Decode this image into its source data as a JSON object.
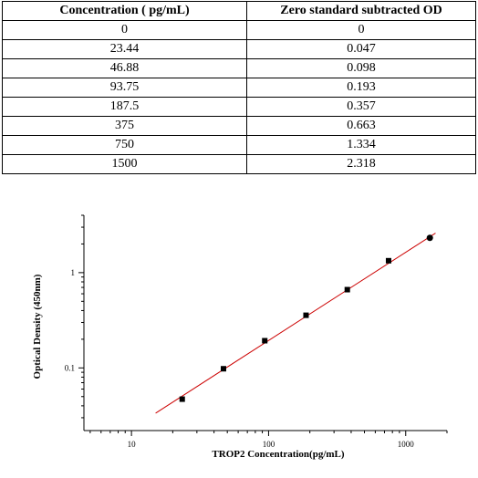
{
  "table": {
    "headers": [
      "Concentration ( pg/mL)",
      "Zero standard subtracted OD"
    ],
    "rows": [
      [
        "0",
        "0"
      ],
      [
        "23.44",
        "0.047"
      ],
      [
        "46.88",
        "0.098"
      ],
      [
        "93.75",
        "0.193"
      ],
      [
        "187.5",
        "0.357"
      ],
      [
        "375",
        "0.663"
      ],
      [
        "750",
        "1.334"
      ],
      [
        "1500",
        "2.318"
      ]
    ]
  },
  "chart_data": {
    "type": "scatter",
    "xlabel": "TROP2   Concentration(pg/mL)",
    "ylabel": "Optical Density (450nm)",
    "x_scale": "log",
    "y_scale": "log",
    "xlim": [
      4.5,
      2000
    ],
    "ylim": [
      0.022,
      4.0
    ],
    "x_ticks": [
      10,
      100,
      1000
    ],
    "x_tick_labels": [
      "10",
      "100",
      "1000"
    ],
    "y_ticks": [
      0.1,
      1
    ],
    "y_tick_labels": [
      "0.1",
      "1"
    ],
    "grid": false,
    "legend": "none",
    "series": [
      {
        "x": [
          23.44,
          46.88,
          93.75,
          187.5,
          375,
          750,
          1500
        ],
        "y": [
          0.047,
          0.098,
          0.193,
          0.357,
          0.663,
          1.334,
          2.318
        ],
        "marker_color": "#000000"
      }
    ],
    "fit_line": {
      "x": [
        15,
        1650
      ],
      "y": [
        0.0335,
        2.6
      ],
      "color": "#cc0000"
    }
  }
}
